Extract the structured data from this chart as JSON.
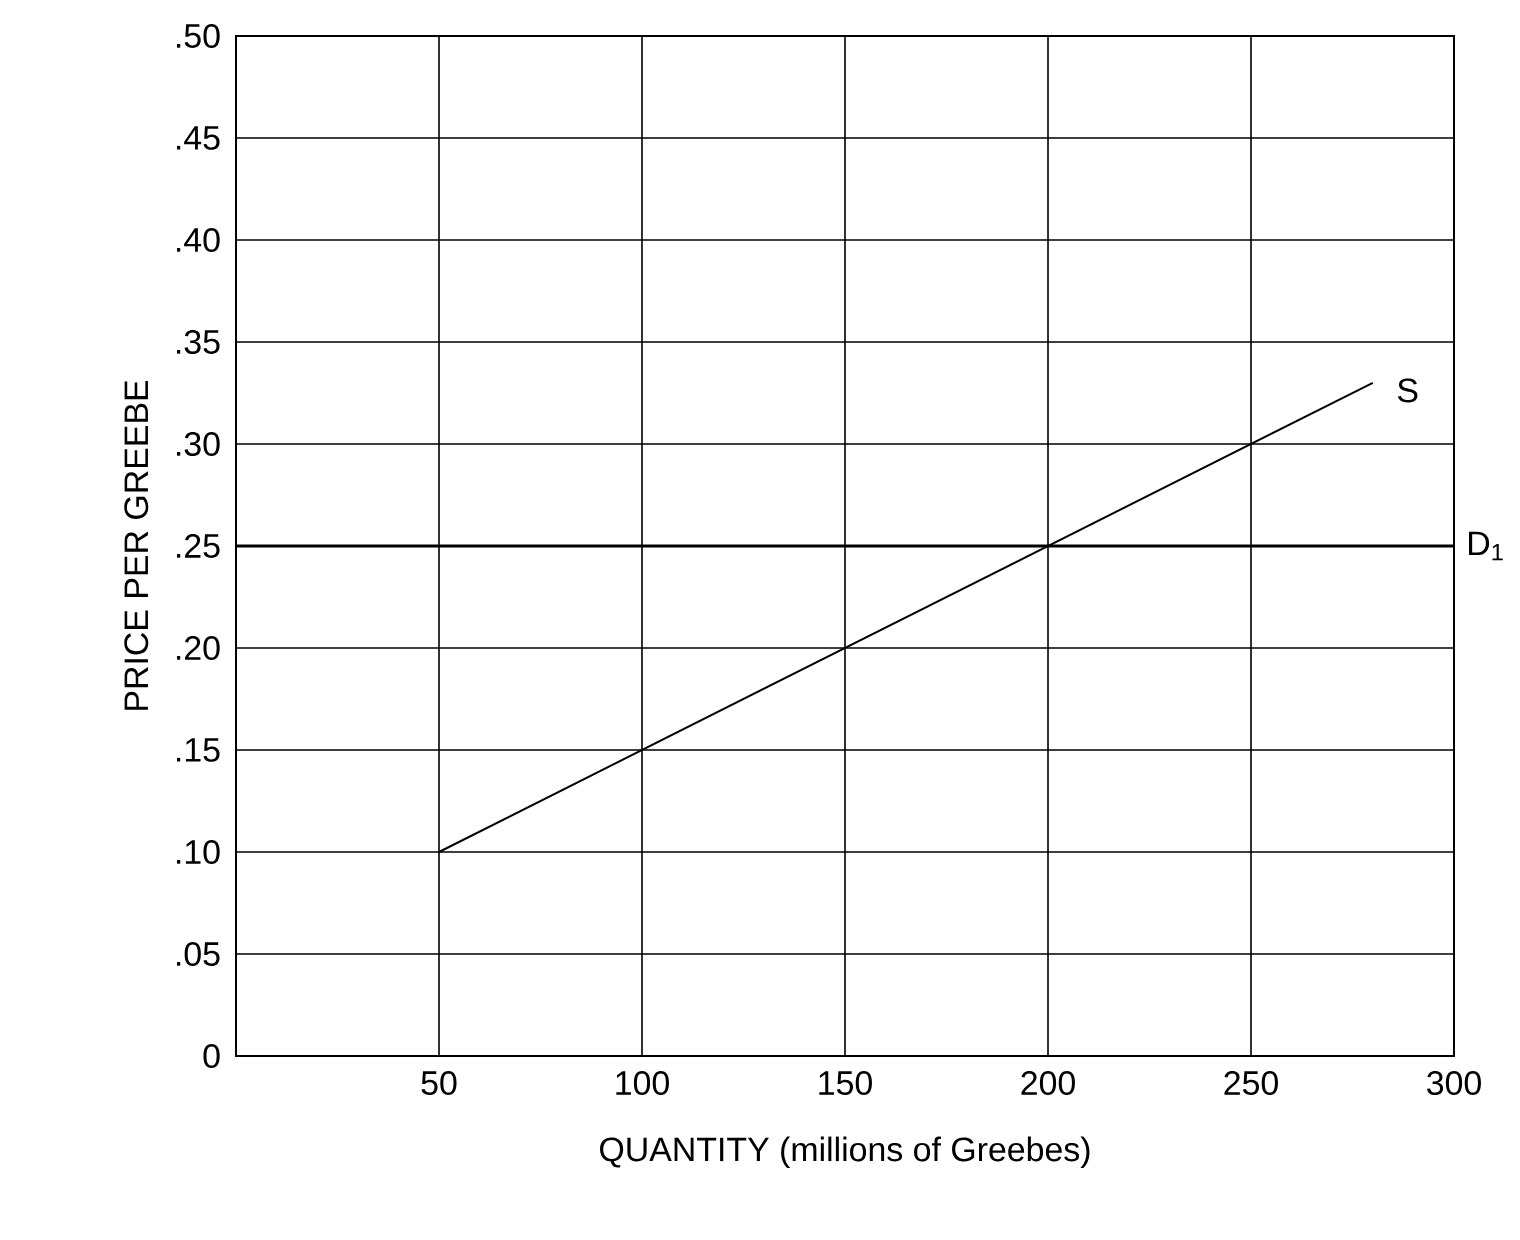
{
  "chart_data": {
    "type": "line",
    "xlabel": "QUANTITY (millions of Greebes)",
    "ylabel": "PRICE PER GREEBE",
    "xlim": [
      0,
      300
    ],
    "xticks": [
      50,
      100,
      150,
      200,
      250,
      300
    ],
    "ylim": [
      0,
      0.5
    ],
    "yticks": [
      0,
      {
        "value": 0.05,
        "label": ".05"
      },
      {
        "value": 0.1,
        "label": ".10"
      },
      {
        "value": 0.15,
        "label": ".15"
      },
      {
        "value": 0.2,
        "label": ".20"
      },
      {
        "value": 0.25,
        "label": ".25"
      },
      {
        "value": 0.3,
        "label": ".30"
      },
      {
        "value": 0.35,
        "label": ".35"
      },
      {
        "value": 0.4,
        "label": ".40"
      },
      {
        "value": 0.45,
        "label": ".45"
      },
      {
        "value": 0.5,
        "label": ".50"
      }
    ],
    "grid": true,
    "marker": "none",
    "line_style": "solid",
    "series": [
      {
        "name": "S",
        "color": "#000000",
        "x": [
          50,
          280
        ],
        "values": [
          0.1,
          0.33
        ]
      }
    ],
    "ref_lines": [
      {
        "axis": "y",
        "value": 0.25,
        "label": "D$_{1}$",
        "color": "#000000",
        "line_style": "solid"
      }
    ]
  }
}
